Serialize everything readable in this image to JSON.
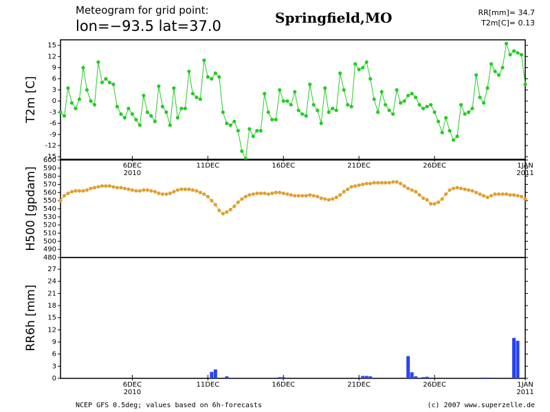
{
  "header": {
    "line1": "Meteogram for grid point:",
    "line2": "lon=−93.5  lat=37.0",
    "place": "Springfield,MO",
    "rr": "RR[mm]= 34.7",
    "t2m": "T2m[C]= 0.13"
  },
  "footer": {
    "left": "NCEP GFS 0.5deg; values based on 6h-forecasts",
    "right": "(c) 2007 www.superzelle.de"
  },
  "chart_data": [
    {
      "type": "line",
      "ylabel": "T2m [C]",
      "xlim": [
        0.25,
        31.0
      ],
      "ylim": [
        -15.7,
        16.5
      ],
      "yticks": [
        15,
        12,
        9,
        6,
        3,
        0,
        -3,
        -6,
        -9,
        -12,
        -15
      ],
      "xticks": [
        {
          "value": 5,
          "label": "6DEC 2010"
        },
        {
          "value": 10,
          "label": "11DEC"
        },
        {
          "value": 15,
          "label": "16DEC"
        },
        {
          "value": 20,
          "label": "21DEC"
        },
        {
          "value": 25,
          "label": "26DEC"
        },
        {
          "value": 31,
          "label": "1JAN 2011"
        }
      ],
      "x": [
        0.25,
        0.5,
        0.75,
        1,
        1.25,
        1.5,
        1.75,
        2,
        2.25,
        2.5,
        2.75,
        3,
        3.25,
        3.5,
        3.75,
        4,
        4.25,
        4.5,
        4.75,
        5,
        5.25,
        5.5,
        5.75,
        6,
        6.25,
        6.5,
        6.75,
        7,
        7.25,
        7.5,
        7.75,
        8,
        8.25,
        8.5,
        8.75,
        9,
        9.25,
        9.5,
        9.75,
        10,
        10.25,
        10.5,
        10.75,
        11,
        11.25,
        11.5,
        11.75,
        12,
        12.25,
        12.5,
        12.75,
        13,
        13.25,
        13.5,
        13.75,
        14,
        14.25,
        14.5,
        14.75,
        15,
        15.25,
        15.5,
        15.75,
        16,
        16.25,
        16.5,
        16.75,
        17,
        17.25,
        17.5,
        17.75,
        18,
        18.25,
        18.5,
        18.75,
        19,
        19.25,
        19.5,
        19.75,
        20,
        20.25,
        20.5,
        20.75,
        21,
        21.25,
        21.5,
        21.75,
        22,
        22.25,
        22.5,
        22.75,
        23,
        23.25,
        23.5,
        23.75,
        24,
        24.25,
        24.5,
        24.75,
        25,
        25.25,
        25.5,
        25.75,
        26,
        26.25,
        26.5,
        26.75,
        27,
        27.25,
        27.5,
        27.75,
        28,
        28.25,
        28.5,
        28.75,
        29,
        29.25,
        29.5,
        29.75,
        30,
        30.25,
        30.5,
        30.75,
        31
      ],
      "series": [
        {
          "name": "T2m",
          "color": "#22cc22",
          "values": [
            -3,
            -4,
            3.5,
            -0.5,
            -2,
            0.5,
            9,
            3,
            0,
            -1,
            10.5,
            5,
            6,
            5,
            4.5,
            -1.5,
            -3.5,
            -4.5,
            -2,
            -3.5,
            -5,
            -6.5,
            1.5,
            -3,
            -4,
            -5.5,
            4,
            -1.5,
            -3,
            -6.5,
            3.5,
            -4.5,
            -2,
            -2,
            8,
            2,
            1,
            0.5,
            11,
            6.5,
            6,
            7.5,
            6.5,
            -3,
            -6,
            -6.5,
            -5.5,
            -8,
            -13.5,
            -15.5,
            -7.5,
            -9.5,
            -8,
            -8,
            2,
            -3,
            -5,
            -5,
            3,
            0,
            0,
            -1,
            2.5,
            -2.5,
            -3.5,
            -4,
            4.5,
            -1,
            -2.5,
            -6,
            3.5,
            -3,
            -2,
            -2.5,
            7.5,
            3,
            -1,
            -1.5,
            10,
            8.5,
            9,
            10.5,
            6,
            0.5,
            -3,
            2.5,
            -1,
            -2.5,
            -3.5,
            3,
            -0.5,
            0,
            1.5,
            2,
            1,
            -1,
            -2,
            -1.5,
            -1,
            -3,
            -5.5,
            -8.5,
            -4.5,
            -8,
            -10.5,
            -9.5,
            -1,
            -3.5,
            -3,
            -2,
            7,
            1,
            -0.5,
            3.5,
            10,
            8,
            7,
            9,
            15.5,
            12.5,
            13.5,
            13,
            12.5,
            4.5
          ]
        }
      ]
    },
    {
      "type": "line",
      "ylabel": "H500 [gpdam]",
      "xlim": [
        0.25,
        31.0
      ],
      "ylim": [
        480,
        600
      ],
      "yticks": [
        600,
        590,
        580,
        570,
        560,
        550,
        540,
        530,
        520,
        510,
        500,
        490,
        480
      ],
      "x": [
        0.25,
        0.5,
        0.75,
        1,
        1.25,
        1.5,
        1.75,
        2,
        2.25,
        2.5,
        2.75,
        3,
        3.25,
        3.5,
        3.75,
        4,
        4.25,
        4.5,
        4.75,
        5,
        5.25,
        5.5,
        5.75,
        6,
        6.25,
        6.5,
        6.75,
        7,
        7.25,
        7.5,
        7.75,
        8,
        8.25,
        8.5,
        8.75,
        9,
        9.25,
        9.5,
        9.75,
        10,
        10.25,
        10.5,
        10.75,
        11,
        11.25,
        11.5,
        11.75,
        12,
        12.25,
        12.5,
        12.75,
        13,
        13.25,
        13.5,
        13.75,
        14,
        14.25,
        14.5,
        14.75,
        15,
        15.25,
        15.5,
        15.75,
        16,
        16.25,
        16.5,
        16.75,
        17,
        17.25,
        17.5,
        17.75,
        18,
        18.25,
        18.5,
        18.75,
        19,
        19.25,
        19.5,
        19.75,
        20,
        20.25,
        20.5,
        20.75,
        21,
        21.25,
        21.5,
        21.75,
        22,
        22.25,
        22.5,
        22.75,
        23,
        23.25,
        23.5,
        23.75,
        24,
        24.25,
        24.5,
        24.75,
        25,
        25.25,
        25.5,
        25.75,
        26,
        26.25,
        26.5,
        26.75,
        27,
        27.25,
        27.5,
        27.75,
        28,
        28.25,
        28.5,
        28.75,
        29,
        29.25,
        29.5,
        29.75,
        30,
        30.25,
        30.5,
        30.75,
        31
      ],
      "series": [
        {
          "name": "H500",
          "color": "#e0a030",
          "values": [
            550,
            556,
            559,
            561,
            562,
            562,
            562,
            563,
            565,
            566,
            567,
            568,
            568,
            568,
            567,
            566,
            566,
            565,
            564,
            563,
            562,
            562,
            563,
            563,
            562,
            561,
            559,
            558,
            558,
            559,
            561,
            563,
            564,
            564,
            564,
            563,
            562,
            560,
            558,
            555,
            550,
            545,
            538,
            534,
            536,
            539,
            543,
            548,
            552,
            555,
            557,
            558,
            559,
            559,
            559,
            558,
            559,
            560,
            560,
            559,
            558,
            557,
            556,
            556,
            556,
            556,
            557,
            556,
            555,
            553,
            552,
            551,
            552,
            554,
            557,
            561,
            564,
            567,
            568,
            569,
            570,
            571,
            571,
            572,
            572,
            572,
            572,
            572,
            573,
            573,
            571,
            568,
            565,
            563,
            561,
            557,
            553,
            551,
            546,
            546,
            548,
            552,
            558,
            563,
            565,
            566,
            565,
            564,
            563,
            562,
            560,
            558,
            556,
            554,
            556,
            558,
            558,
            558,
            558,
            557,
            557,
            556,
            555,
            552
          ]
        }
      ]
    },
    {
      "type": "bar",
      "ylabel": "RR6h [mm]",
      "xlim": [
        0.25,
        31.0
      ],
      "ylim": [
        0,
        29.9
      ],
      "yticks": [
        27,
        24,
        21,
        18,
        15,
        12,
        9,
        6,
        3,
        0
      ],
      "xticks": [
        {
          "value": 5,
          "label": "6DEC 2010"
        },
        {
          "value": 10,
          "label": "11DEC"
        },
        {
          "value": 15,
          "label": "16DEC"
        },
        {
          "value": 20,
          "label": "21DEC"
        },
        {
          "value": 25,
          "label": "26DEC"
        },
        {
          "value": 31,
          "label": "1JAN 2011"
        }
      ],
      "x": [
        10.25,
        10.5,
        11.25,
        14.75,
        15,
        20.25,
        20.5,
        20.75,
        23.25,
        23.5,
        23.75,
        24.25,
        24.5,
        24.75,
        28.25,
        28.5,
        30.25,
        30.5
      ],
      "series": [
        {
          "name": "RR6h",
          "color": "#2a44f0",
          "values": [
            1.6,
            2.2,
            0.5,
            0.3,
            0.3,
            0.6,
            0.6,
            0.5,
            5.5,
            1.5,
            0.5,
            0.3,
            0.4,
            0.2,
            0.2,
            0.2,
            10,
            9.3
          ]
        }
      ]
    }
  ]
}
